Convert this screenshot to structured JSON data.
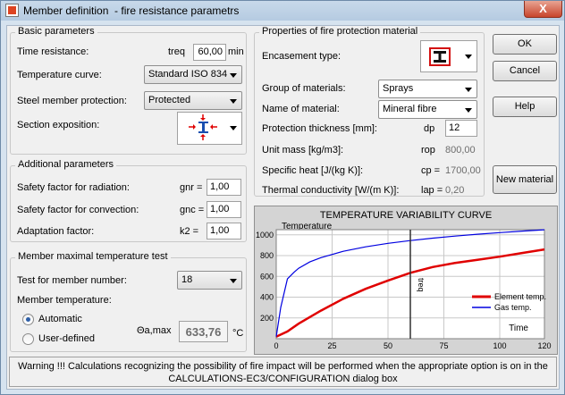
{
  "window": {
    "title": "Member definition  - fire resistance parametrs",
    "close_label": "X"
  },
  "basic": {
    "legend": "Basic parameters",
    "time_label": "Time resistance:",
    "time_symbol": "treq",
    "time_value": "60,00",
    "time_unit": "min",
    "curve_label": "Temperature curve:",
    "curve_value": "Standard ISO 834",
    "protection_label": "Steel member protection:",
    "protection_value": "Protected",
    "exposition_label": "Section exposition:"
  },
  "additional": {
    "legend": "Additional parameters",
    "rad_label": "Safety factor for radiation:",
    "rad_symbol": "gnr =",
    "rad_value": "1,00",
    "conv_label": "Safety factor for convection:",
    "conv_symbol": "gnc =",
    "conv_value": "1,00",
    "adapt_label": "Adaptation factor:",
    "adapt_symbol": "k2 =",
    "adapt_value": "1,00"
  },
  "maxtemp": {
    "legend": "Member maximal temperature test",
    "test_label": "Test for member number:",
    "test_value": "18",
    "temp_label": "Member temperature:",
    "auto_label": "Automatic",
    "user_label": "User-defined",
    "theta_label": "Θa,max",
    "theta_value": "633,76",
    "theta_unit": "°C"
  },
  "protection": {
    "legend": "Properties of fire protection material",
    "encasement_label": "Encasement type:",
    "group_label": "Group of materials:",
    "group_value": "Sprays",
    "name_label": "Name of material:",
    "name_value": "Mineral fibre",
    "thickness_label": "Protection thickness [mm]:",
    "thickness_symbol": "dp",
    "thickness_value": "12",
    "mass_label": "Unit mass [kg/m3]:",
    "mass_symbol": "rop",
    "mass_value": "800,00",
    "heat_label": "Specific heat  [J/(kg K)]:",
    "heat_symbol": "cp =",
    "heat_value": "1700,00",
    "cond_label": "Thermal conductivity  [W/(m K)]:",
    "cond_symbol": "lap =",
    "cond_value": "0,20"
  },
  "buttons": {
    "ok": "OK",
    "cancel": "Cancel",
    "help": "Help",
    "new_material": "New material"
  },
  "icons": {
    "title": "app-icon",
    "exposition": "four-side-exposure-icon",
    "encasement": "i-section-encasement-icon"
  },
  "colors": {
    "element": "#e00000",
    "gas": "#0000e0",
    "chart_bg": "#ffffff",
    "treq_line": "#303030"
  },
  "chart_data": {
    "type": "line",
    "title": "TEMPERATURE VARIABILITY CURVE",
    "ylabel": "Temperature",
    "xlabel": "Time",
    "xlim": [
      0,
      120
    ],
    "ylim": [
      0,
      1050
    ],
    "xticks": [
      0,
      25,
      50,
      75,
      100,
      120
    ],
    "yticks": [
      200,
      400,
      600,
      800,
      1000
    ],
    "marker_label": "treq",
    "marker_x": 60,
    "legend_position": "right",
    "grid": true,
    "series": [
      {
        "name": "Element temp.",
        "x": [
          0,
          5,
          10,
          20,
          30,
          40,
          50,
          60,
          70,
          80,
          90,
          100,
          110,
          120
        ],
        "y": [
          20,
          70,
          145,
          270,
          385,
          480,
          560,
          634,
          690,
          730,
          760,
          790,
          825,
          860
        ]
      },
      {
        "name": "Gas temp.",
        "x": [
          0,
          2,
          5,
          8,
          10,
          15,
          20,
          30,
          40,
          50,
          60,
          70,
          80,
          90,
          100,
          110,
          120
        ],
        "y": [
          20,
          300,
          576,
          640,
          678,
          739,
          781,
          842,
          885,
          918,
          945,
          968,
          988,
          1006,
          1022,
          1036,
          1049
        ]
      }
    ]
  }
}
